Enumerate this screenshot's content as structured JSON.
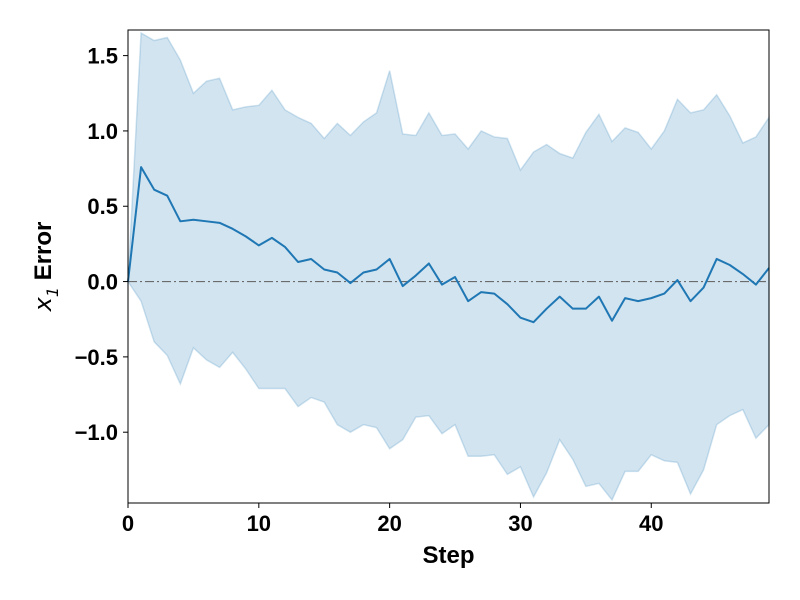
{
  "chart_data": {
    "type": "line",
    "xlabel": "Step",
    "ylabel_var": "x",
    "ylabel_sub": "1",
    "ylabel_text": " Error",
    "xlim": [
      0,
      49
    ],
    "ylim": [
      -1.47,
      1.67
    ],
    "xticks": [
      0,
      10,
      20,
      30,
      40
    ],
    "xtick_labels": [
      "0",
      "10",
      "20",
      "30",
      "40"
    ],
    "yticks": [
      -1.0,
      -0.5,
      0.0,
      0.5,
      1.0,
      1.5
    ],
    "ytick_labels": [
      "−1.0",
      "−0.5",
      "0.0",
      "0.5",
      "1.0",
      "1.5"
    ],
    "grid": false,
    "reference_line": {
      "y": 0.0,
      "style": "dashdot",
      "color": "#6b6b6b"
    },
    "colors": {
      "line": "#1f77b4",
      "band": "#1f77b4",
      "band_opacity": 0.2
    },
    "series": [
      {
        "x": [
          0,
          1,
          2,
          3,
          4,
          5,
          6,
          7,
          8,
          9,
          10,
          11,
          12,
          13,
          14,
          15,
          16,
          17,
          18,
          19,
          20,
          21,
          22,
          23,
          24,
          25,
          26,
          27,
          28,
          29,
          30,
          31,
          32,
          33,
          34,
          35,
          36,
          37,
          38,
          39,
          40,
          41,
          42,
          43,
          44,
          45,
          46,
          47,
          48,
          49
        ],
        "mean": [
          0.0,
          0.76,
          0.61,
          0.57,
          0.4,
          0.41,
          0.4,
          0.39,
          0.35,
          0.3,
          0.24,
          0.29,
          0.23,
          0.13,
          0.15,
          0.08,
          0.06,
          -0.01,
          0.06,
          0.08,
          0.15,
          -0.03,
          0.04,
          0.12,
          -0.02,
          0.03,
          -0.13,
          -0.07,
          -0.08,
          -0.15,
          -0.24,
          -0.27,
          -0.18,
          -0.1,
          -0.18,
          -0.18,
          -0.1,
          -0.26,
          -0.11,
          -0.13,
          -0.11,
          -0.08,
          0.01,
          -0.13,
          -0.04,
          0.15,
          0.11,
          0.05,
          -0.02,
          0.09
        ],
        "upper": [
          0.0,
          1.65,
          1.6,
          1.62,
          1.47,
          1.25,
          1.33,
          1.35,
          1.14,
          1.16,
          1.17,
          1.27,
          1.14,
          1.09,
          1.05,
          0.95,
          1.05,
          0.97,
          1.06,
          1.12,
          1.4,
          0.98,
          0.97,
          1.12,
          0.97,
          0.98,
          0.88,
          1.0,
          0.96,
          0.95,
          0.74,
          0.86,
          0.91,
          0.85,
          0.82,
          0.99,
          1.11,
          0.93,
          1.02,
          0.99,
          0.88,
          1.0,
          1.21,
          1.12,
          1.14,
          1.24,
          1.1,
          0.92,
          0.96,
          1.09
        ],
        "lower": [
          0.0,
          -0.13,
          -0.4,
          -0.49,
          -0.68,
          -0.44,
          -0.52,
          -0.57,
          -0.47,
          -0.58,
          -0.71,
          -0.71,
          -0.71,
          -0.83,
          -0.77,
          -0.8,
          -0.95,
          -1.0,
          -0.95,
          -0.97,
          -1.11,
          -1.05,
          -0.9,
          -0.89,
          -1.01,
          -0.95,
          -1.16,
          -1.16,
          -1.15,
          -1.28,
          -1.23,
          -1.43,
          -1.27,
          -1.05,
          -1.18,
          -1.36,
          -1.34,
          -1.45,
          -1.26,
          -1.26,
          -1.15,
          -1.19,
          -1.2,
          -1.41,
          -1.25,
          -0.95,
          -0.89,
          -0.85,
          -1.04,
          -0.95
        ]
      }
    ]
  }
}
